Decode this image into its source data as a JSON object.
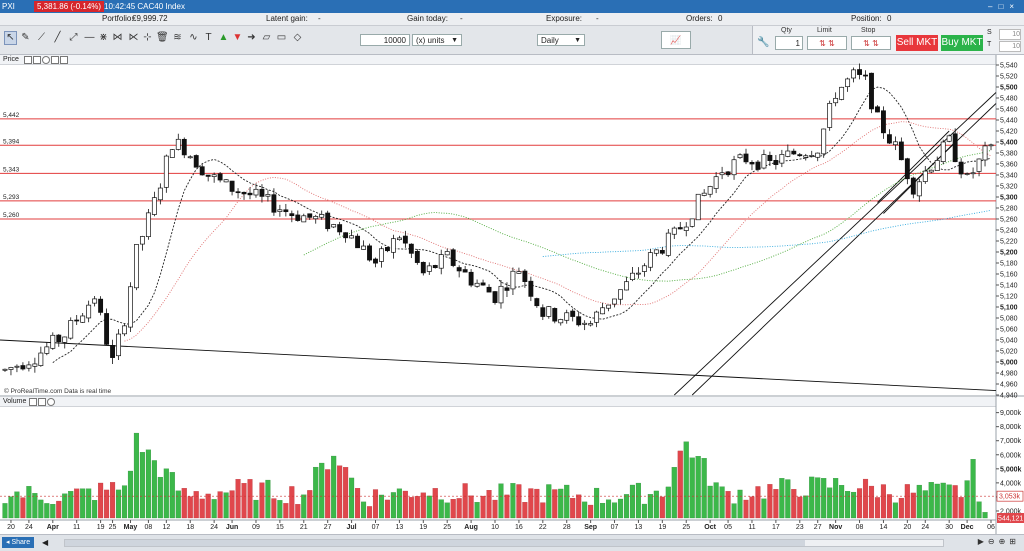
{
  "titlebar": {
    "symbol": "PXI",
    "change": "5,381.86 (-0.14%)",
    "info": "10:42:45 CAC40 Index"
  },
  "infobar": {
    "portfolio_label": "Portfolio:",
    "portfolio_value": "€9,999.72",
    "latent_label": "Latent gain:",
    "latent_value": "-",
    "today_label": "Gain today:",
    "today_value": "-",
    "exposure_label": "Exposure:",
    "exposure_value": "-",
    "orders_label": "Orders:",
    "orders_value": "0",
    "position_label": "Position:",
    "position_value": "0"
  },
  "toolbar": {
    "quantity": "10000",
    "units": "(x) units",
    "timeframe": "Daily"
  },
  "order_panel": {
    "qty_label": "Qty",
    "qty_value": "1",
    "limit_label": "Limit",
    "stop_label": "Stop",
    "sell_label": "Sell MKT",
    "buy_label": "Buy MKT",
    "s_label": "S",
    "s_value": "10",
    "t_label": "T",
    "t_value": "10"
  },
  "price_panel": {
    "label": "Price",
    "watermark": "© ProRealTime.com Data is real time"
  },
  "volume_panel": {
    "label": "Volume"
  },
  "colors": {
    "up": "#3cb84a",
    "down": "#e0474c",
    "level": "#e23c3c"
  },
  "chart_data": {
    "type": "candlestick",
    "price_axis": {
      "min": 4940,
      "max": 5540,
      "ticks": [
        "5,540",
        "5,520",
        "5,500",
        "5,480",
        "5,460",
        "5,440",
        "5,420",
        "5,400",
        "5,380",
        "5,360",
        "5,340",
        "5,320",
        "5,300",
        "5,280",
        "5,260",
        "5,240",
        "5,220",
        "5,200",
        "5,180",
        "5,160",
        "5,140",
        "5,120",
        "5,100",
        "5,080",
        "5,060",
        "5,040",
        "5,020",
        "5,000",
        "4,980",
        "4,960",
        "4,940"
      ],
      "bold_ticks": [
        "5,500",
        "5,400",
        "5,300",
        "5,200",
        "5,100",
        "5,000"
      ]
    },
    "level_lines": [
      {
        "label": "5,442",
        "value": 5442
      },
      {
        "label": "5,394",
        "value": 5394
      },
      {
        "label": "5,343",
        "value": 5343
      },
      {
        "label": "5,293",
        "value": 5293
      },
      {
        "label": "5,260",
        "value": 5260
      }
    ],
    "volume_axis": {
      "ticks": [
        {
          "label": "9,000k",
          "value": 9000
        },
        {
          "label": "8,000k",
          "value": 8000
        },
        {
          "label": "7,000k",
          "value": 7000
        },
        {
          "label": "6,000k",
          "value": 6000
        },
        {
          "label": "5,000k",
          "value": 5000,
          "bold": true
        },
        {
          "label": "4,000k",
          "value": 4000
        },
        {
          "label": "3,000k",
          "value": 3000
        },
        {
          "label": "2,000k",
          "value": 2000
        }
      ],
      "avg_label": "3,053k",
      "avg_value": 3053,
      "last_label": "544,121"
    },
    "x_ticks": [
      {
        "label": "20",
        "i": 1
      },
      {
        "label": "24",
        "i": 4
      },
      {
        "label": "Apr",
        "i": 8,
        "bold": true
      },
      {
        "label": "11",
        "i": 12
      },
      {
        "label": "19",
        "i": 16
      },
      {
        "label": "25",
        "i": 18
      },
      {
        "label": "May",
        "i": 21,
        "bold": true
      },
      {
        "label": "08",
        "i": 24
      },
      {
        "label": "12",
        "i": 27
      },
      {
        "label": "18",
        "i": 31
      },
      {
        "label": "24",
        "i": 35
      },
      {
        "label": "Jun",
        "i": 38,
        "bold": true
      },
      {
        "label": "09",
        "i": 42
      },
      {
        "label": "15",
        "i": 46
      },
      {
        "label": "21",
        "i": 50
      },
      {
        "label": "27",
        "i": 54
      },
      {
        "label": "Jul",
        "i": 58,
        "bold": true
      },
      {
        "label": "07",
        "i": 62
      },
      {
        "label": "13",
        "i": 66
      },
      {
        "label": "19",
        "i": 70
      },
      {
        "label": "25",
        "i": 74
      },
      {
        "label": "Aug",
        "i": 78,
        "bold": true
      },
      {
        "label": "10",
        "i": 82
      },
      {
        "label": "16",
        "i": 86
      },
      {
        "label": "22",
        "i": 90
      },
      {
        "label": "28",
        "i": 94
      },
      {
        "label": "Sep",
        "i": 98,
        "bold": true
      },
      {
        "label": "07",
        "i": 102
      },
      {
        "label": "13",
        "i": 106
      },
      {
        "label": "19",
        "i": 110
      },
      {
        "label": "25",
        "i": 114
      },
      {
        "label": "Oct",
        "i": 118,
        "bold": true
      },
      {
        "label": "05",
        "i": 121
      },
      {
        "label": "11",
        "i": 125
      },
      {
        "label": "17",
        "i": 129
      },
      {
        "label": "23",
        "i": 133
      },
      {
        "label": "27",
        "i": 136
      },
      {
        "label": "Nov",
        "i": 139,
        "bold": true
      },
      {
        "label": "08",
        "i": 143
      },
      {
        "label": "14",
        "i": 147
      },
      {
        "label": "20",
        "i": 151
      },
      {
        "label": "24",
        "i": 154
      },
      {
        "label": "30",
        "i": 158
      },
      {
        "label": "Dec",
        "i": 161,
        "bold": true
      },
      {
        "label": "06",
        "i": 165
      }
    ],
    "bar_count": 166,
    "anchors": [
      [
        0,
        4985
      ],
      [
        5,
        5010
      ],
      [
        10,
        5050
      ],
      [
        15,
        5120
      ],
      [
        18,
        5000
      ],
      [
        20,
        5080
      ],
      [
        22,
        5200
      ],
      [
        25,
        5290
      ],
      [
        28,
        5400
      ],
      [
        30,
        5390
      ],
      [
        34,
        5340
      ],
      [
        37,
        5320
      ],
      [
        42,
        5300
      ],
      [
        48,
        5270
      ],
      [
        52,
        5260
      ],
      [
        57,
        5240
      ],
      [
        62,
        5180
      ],
      [
        66,
        5230
      ],
      [
        70,
        5160
      ],
      [
        74,
        5190
      ],
      [
        78,
        5150
      ],
      [
        82,
        5120
      ],
      [
        86,
        5170
      ],
      [
        90,
        5090
      ],
      [
        94,
        5080
      ],
      [
        98,
        5070
      ],
      [
        100,
        5100
      ],
      [
        104,
        5140
      ],
      [
        108,
        5190
      ],
      [
        112,
        5230
      ],
      [
        116,
        5290
      ],
      [
        120,
        5350
      ],
      [
        124,
        5370
      ],
      [
        128,
        5360
      ],
      [
        132,
        5380
      ],
      [
        136,
        5390
      ],
      [
        139,
        5490
      ],
      [
        142,
        5520
      ],
      [
        144,
        5510
      ],
      [
        146,
        5440
      ],
      [
        149,
        5390
      ],
      [
        152,
        5320
      ],
      [
        155,
        5360
      ],
      [
        158,
        5400
      ],
      [
        161,
        5330
      ],
      [
        164,
        5380
      ],
      [
        165,
        5382
      ]
    ],
    "volume_anchors": [
      [
        0,
        3300
      ],
      [
        10,
        3000
      ],
      [
        20,
        3700
      ],
      [
        22,
        7000
      ],
      [
        30,
        3100
      ],
      [
        40,
        3600
      ],
      [
        50,
        3200
      ],
      [
        55,
        6200
      ],
      [
        60,
        3000
      ],
      [
        70,
        3500
      ],
      [
        80,
        3100
      ],
      [
        90,
        3300
      ],
      [
        100,
        3000
      ],
      [
        110,
        3400
      ],
      [
        114,
        6900
      ],
      [
        120,
        3200
      ],
      [
        130,
        3600
      ],
      [
        140,
        3900
      ],
      [
        150,
        3300
      ],
      [
        160,
        3400
      ],
      [
        162,
        4900
      ],
      [
        165,
        500
      ]
    ],
    "ma_fast": "dashed black",
    "ma_20": "dotted red",
    "ma_50": "dotted green",
    "ma_100": "dotted blue"
  }
}
